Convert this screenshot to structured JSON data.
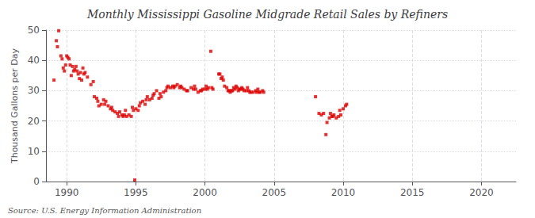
{
  "chart_data": {
    "type": "scatter",
    "title": "Monthly Mississippi Gasoline Midgrade Retail Sales by Refiners",
    "ylabel": "Thousand Gallons per Day",
    "annotation": "Source: U.S. Energy Information Administration",
    "color": "#dd0000",
    "marker": "square",
    "grid": true,
    "xlim": [
      1988.5,
      2022.5
    ],
    "ylim": [
      0,
      50
    ],
    "xticks": [
      1990,
      1995,
      2000,
      2005,
      2010,
      2015,
      2020
    ],
    "yticks": [
      0,
      10,
      20,
      30,
      40,
      50
    ],
    "x": [
      1989.08,
      1989.25,
      1989.33,
      1989.42,
      1989.58,
      1989.67,
      1989.75,
      1989.83,
      1989.92,
      1990.0,
      1990.08,
      1990.17,
      1990.25,
      1990.33,
      1990.42,
      1990.5,
      1990.58,
      1990.67,
      1990.75,
      1990.83,
      1990.92,
      1991.0,
      1991.08,
      1991.17,
      1991.25,
      1991.33,
      1991.5,
      1991.75,
      1991.92,
      1992.0,
      1992.17,
      1992.25,
      1992.33,
      1992.5,
      1992.67,
      1992.75,
      1992.83,
      1993.0,
      1993.17,
      1993.25,
      1993.33,
      1993.5,
      1993.67,
      1993.75,
      1993.83,
      1994.0,
      1994.08,
      1994.17,
      1994.25,
      1994.33,
      1994.5,
      1994.67,
      1994.75,
      1994.83,
      1994.92,
      1995.0,
      1995.17,
      1995.25,
      1995.33,
      1995.5,
      1995.67,
      1995.75,
      1995.83,
      1996.0,
      1996.17,
      1996.25,
      1996.33,
      1996.5,
      1996.67,
      1996.75,
      1996.83,
      1997.0,
      1997.17,
      1997.25,
      1997.33,
      1997.5,
      1997.67,
      1997.75,
      1997.83,
      1998.0,
      1998.17,
      1998.25,
      1998.33,
      1998.5,
      1998.67,
      1998.75,
      1999.0,
      1999.17,
      1999.25,
      1999.33,
      1999.5,
      1999.67,
      1999.75,
      1999.83,
      2000.0,
      2000.08,
      2000.17,
      2000.25,
      2000.42,
      2000.5,
      2000.58,
      2001.0,
      2001.08,
      2001.17,
      2001.25,
      2001.33,
      2001.42,
      2001.58,
      2001.67,
      2001.75,
      2001.83,
      2001.92,
      2002.0,
      2002.08,
      2002.17,
      2002.25,
      2002.33,
      2002.42,
      2002.5,
      2002.58,
      2002.67,
      2002.75,
      2002.83,
      2003.0,
      2003.08,
      2003.17,
      2003.25,
      2003.33,
      2003.5,
      2003.67,
      2003.75,
      2003.83,
      2003.92,
      2004.0,
      2004.17,
      2004.25,
      2008.0,
      2008.25,
      2008.42,
      2008.58,
      2008.75,
      2008.83,
      2009.0,
      2009.08,
      2009.17,
      2009.25,
      2009.33,
      2009.5,
      2009.67,
      2009.75,
      2009.83,
      2010.0,
      2010.17,
      2010.25
    ],
    "values": [
      33.5,
      46.5,
      44.5,
      49.8,
      41.5,
      40.5,
      37.5,
      36.5,
      38.5,
      41.5,
      41.0,
      40.5,
      38.5,
      35.0,
      38.0,
      36.5,
      37.0,
      38.0,
      36.5,
      35.5,
      34.0,
      36.0,
      33.5,
      37.5,
      35.5,
      36.0,
      34.5,
      32.0,
      33.0,
      28.0,
      27.5,
      26.5,
      25.0,
      25.5,
      27.0,
      25.5,
      26.5,
      25.0,
      24.0,
      24.5,
      23.5,
      23.0,
      22.5,
      21.5,
      23.0,
      22.0,
      21.5,
      22.0,
      23.5,
      21.5,
      22.0,
      21.5,
      24.5,
      23.5,
      0.5,
      24.0,
      23.5,
      25.0,
      26.0,
      26.5,
      25.5,
      27.0,
      28.0,
      27.0,
      27.5,
      28.5,
      29.0,
      30.0,
      27.5,
      29.0,
      28.0,
      29.5,
      30.0,
      31.0,
      31.5,
      31.0,
      31.5,
      31.0,
      31.5,
      32.0,
      31.0,
      31.5,
      31.0,
      30.5,
      30.0,
      30.0,
      31.0,
      30.5,
      31.5,
      30.5,
      29.5,
      30.0,
      30.0,
      30.5,
      30.5,
      31.5,
      30.5,
      31.0,
      43.0,
      31.0,
      30.5,
      35.5,
      35.5,
      34.0,
      34.5,
      33.5,
      31.5,
      31.0,
      30.0,
      30.0,
      29.5,
      30.0,
      30.0,
      31.0,
      30.5,
      31.5,
      31.0,
      30.0,
      30.5,
      30.5,
      31.0,
      30.5,
      30.0,
      30.0,
      31.0,
      30.0,
      29.5,
      29.5,
      29.5,
      30.0,
      29.5,
      30.5,
      29.5,
      29.5,
      30.0,
      29.5,
      28.0,
      22.5,
      22.0,
      22.5,
      15.5,
      19.5,
      21.0,
      22.5,
      21.5,
      21.5,
      22.0,
      21.0,
      21.5,
      23.5,
      22.0,
      24.0,
      25.0,
      25.5
    ]
  }
}
